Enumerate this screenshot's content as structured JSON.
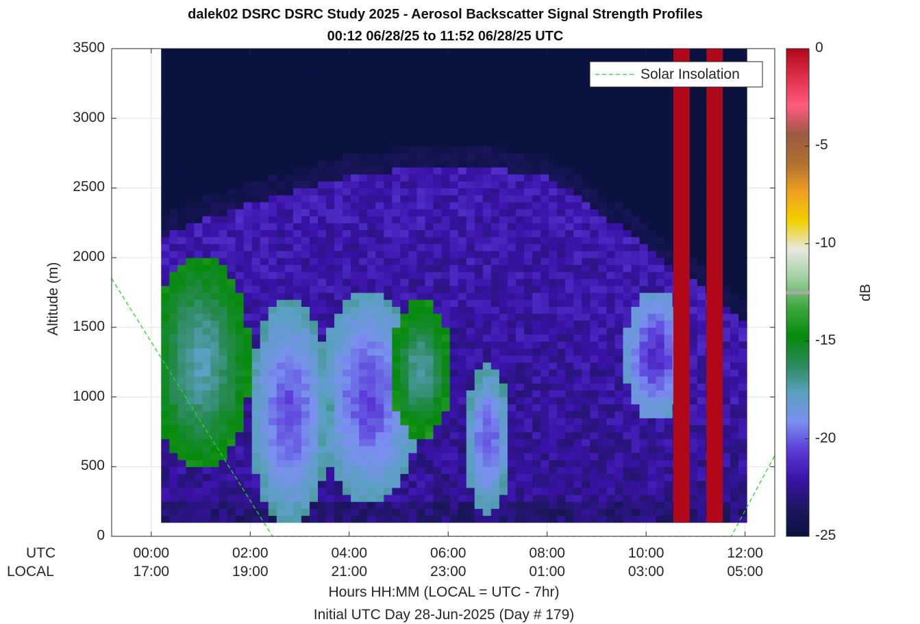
{
  "title": "dalek02 DSRC DSRC Study 2025 - Aerosol Backscatter Signal Strength Profiles",
  "subtitle": "00:12 06/28/25 to 11:52 06/28/25  UTC",
  "chart_data": {
    "type": "heatmap",
    "ylabel": "Altitude (m)",
    "xlabel": "Hours HH:MM  (LOCAL = UTC - 7hr)",
    "xlabel2": "Initial UTC Day 28-Jun-2025 (Day # 179)",
    "row_labels": [
      "UTC",
      "LOCAL"
    ],
    "x_range_hours": [
      -0.8,
      12.6
    ],
    "y_range": [
      0,
      3500
    ],
    "grid": true,
    "y_ticks": [
      0,
      500,
      1000,
      1500,
      2000,
      2500,
      3000,
      3500
    ],
    "x_ticks_hours": [
      0,
      2,
      4,
      6,
      8,
      10,
      12
    ],
    "x_tick_utc": [
      "00:00",
      "02:00",
      "04:00",
      "06:00",
      "08:00",
      "10:00",
      "12:00"
    ],
    "x_tick_local": [
      "17:00",
      "19:00",
      "21:00",
      "23:00",
      "01:00",
      "03:00",
      "05:00"
    ],
    "data_time_range_hours": [
      0.2,
      11.87
    ],
    "data_alt_range_m": [
      100,
      3500
    ],
    "colorbar": {
      "label": "dB",
      "range": [
        -25,
        0
      ],
      "ticks": [
        0,
        -5,
        -10,
        -15,
        -20,
        -25
      ],
      "colors": [
        "#0a1240",
        "#1e1660",
        "#3a12a8",
        "#5a3ad8",
        "#7a90f0",
        "#5aa0c0",
        "#2a8a58",
        "#058a0a",
        "#40a840",
        "#a0d0a0",
        "#e8e8e0",
        "#f0d000",
        "#f0a020",
        "#b07030",
        "#9a5a40",
        "#ff5a80",
        "#e0304a",
        "#b00818"
      ],
      "marker_db": -12.5
    },
    "legend": {
      "entry": "Solar Insolation",
      "placement": "top-right",
      "color": "#22dd22"
    },
    "solar_insolation_line": {
      "x_hours": [
        -0.8,
        2.45,
        11.72,
        12.6
      ],
      "y_m": [
        1850,
        0,
        0,
        580
      ]
    },
    "saturated_columns_hours": [
      [
        10.55,
        10.88
      ],
      [
        11.22,
        11.55
      ]
    ],
    "saturated_color": "#b00818",
    "aerosol_features": [
      {
        "t_hours": 1.0,
        "alt_m": 1250,
        "peak_db": -17.5,
        "width_hours": 0.85,
        "height_m": 650
      },
      {
        "t_hours": 5.45,
        "alt_m": 1200,
        "peak_db": -17.2,
        "width_hours": 0.55,
        "height_m": 420
      },
      {
        "t_hours": 2.8,
        "alt_m": 900,
        "peak_db": -20.3,
        "width_hours": 0.7,
        "height_m": 700
      },
      {
        "t_hours": 4.4,
        "alt_m": 1000,
        "peak_db": -20.4,
        "width_hours": 0.9,
        "height_m": 650
      },
      {
        "t_hours": 6.8,
        "alt_m": 700,
        "peak_db": -20.2,
        "width_hours": 0.4,
        "height_m": 450
      },
      {
        "t_hours": 10.2,
        "alt_m": 1300,
        "peak_db": -21.0,
        "width_hours": 0.55,
        "height_m": 400
      }
    ]
  }
}
